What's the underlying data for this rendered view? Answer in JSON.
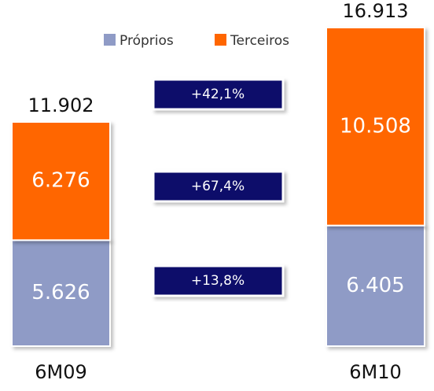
{
  "chart_data": {
    "type": "stacked-bar",
    "categories": [
      "6M09",
      "6M10"
    ],
    "series": [
      {
        "name": "Próprios",
        "color": "#8f9bc6",
        "values": [
          5626,
          6405
        ],
        "value_labels": [
          "5.626",
          "6.405"
        ]
      },
      {
        "name": "Terceiros",
        "color": "#ff6600",
        "values": [
          6276,
          10508
        ],
        "value_labels": [
          "6.276",
          "10.508"
        ]
      }
    ],
    "totals": {
      "values": [
        11902,
        16913
      ],
      "value_labels": [
        "11.902",
        "16.913"
      ]
    },
    "annotations": [
      "+42,1%",
      "+67,4%",
      "+13,8%"
    ],
    "annotation_color": "#0c0a6a"
  }
}
